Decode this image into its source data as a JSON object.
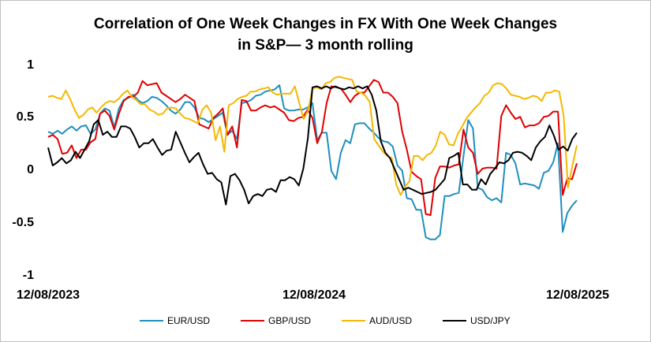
{
  "chart_data": {
    "type": "line",
    "title_lines": [
      "Correlation of One Week Changes in FX With One Week Changes",
      "in S&P— 3 month rolling"
    ],
    "xlabel": "",
    "ylabel": "",
    "ylim": [
      -1,
      1
    ],
    "y_ticks": [
      "1",
      "0.5",
      "0",
      "-0.5",
      "-1"
    ],
    "x_ticks": [
      "12/08/2023",
      "12/08/2024",
      "12/08/2025"
    ],
    "grid": false,
    "legend_position": "bottom",
    "series": [
      {
        "name": "EUR/USD",
        "color": "#1f8fbf",
        "values": [
          0.35,
          0.33,
          0.36,
          0.33,
          0.37,
          0.4,
          0.36,
          0.4,
          0.41,
          0.33,
          0.37,
          0.52,
          0.57,
          0.55,
          0.39,
          0.57,
          0.65,
          0.67,
          0.7,
          0.65,
          0.62,
          0.64,
          0.68,
          0.67,
          0.64,
          0.6,
          0.55,
          0.52,
          0.56,
          0.63,
          0.63,
          0.58,
          0.48,
          0.47,
          0.44,
          0.47,
          0.5,
          0.53,
          0.32,
          0.36,
          0.28,
          0.62,
          0.63,
          0.65,
          0.69,
          0.7,
          0.73,
          0.74,
          0.75,
          0.79,
          0.57,
          0.55,
          0.55,
          0.56,
          0.56,
          0.58,
          0.62,
          0.27,
          0.34,
          0.34,
          -0.02,
          -0.1,
          0.15,
          0.27,
          0.24,
          0.42,
          0.43,
          0.43,
          0.38,
          0.34,
          0.29,
          0.26,
          0.25,
          0.21,
          0.03,
          -0.02,
          -0.28,
          -0.29,
          -0.39,
          -0.39,
          -0.65,
          -0.67,
          -0.67,
          -0.63,
          -0.26,
          -0.26,
          -0.24,
          -0.23,
          0.12,
          0.46,
          0.38,
          -0.18,
          -0.2,
          -0.27,
          -0.3,
          -0.28,
          -0.32,
          0.15,
          0.13,
          0.05,
          -0.15,
          -0.14,
          -0.15,
          -0.16,
          -0.19,
          -0.04,
          -0.02,
          0.06,
          0.24,
          -0.6,
          -0.42,
          -0.35,
          -0.3
        ]
      },
      {
        "name": "GBP/USD",
        "color": "#e00000",
        "values": [
          0.3,
          0.32,
          0.28,
          0.14,
          0.15,
          0.22,
          0.1,
          0.18,
          0.18,
          0.25,
          0.28,
          0.52,
          0.55,
          0.5,
          0.37,
          0.52,
          0.64,
          0.68,
          0.68,
          0.72,
          0.83,
          0.79,
          0.8,
          0.81,
          0.72,
          0.69,
          0.66,
          0.63,
          0.66,
          0.7,
          0.67,
          0.64,
          0.42,
          0.4,
          0.38,
          0.48,
          0.52,
          0.57,
          0.32,
          0.4,
          0.2,
          0.65,
          0.64,
          0.55,
          0.55,
          0.58,
          0.6,
          0.58,
          0.59,
          0.56,
          0.53,
          0.46,
          0.45,
          0.48,
          0.49,
          0.56,
          0.48,
          0.24,
          0.35,
          0.62,
          0.78,
          0.77,
          0.76,
          0.7,
          0.63,
          0.69,
          0.72,
          0.72,
          0.78,
          0.84,
          0.82,
          0.72,
          0.72,
          0.68,
          0.62,
          0.35,
          0.18,
          -0.03,
          -0.07,
          -0.1,
          -0.43,
          -0.44,
          -0.09,
          0.02,
          0.02,
          0.01,
          0.03,
          0.04,
          0.37,
          0.2,
          0.15,
          -0.05,
          0.0,
          0.01,
          0.01,
          0.0,
          0.5,
          0.6,
          0.53,
          0.47,
          0.49,
          0.39,
          0.41,
          0.41,
          0.43,
          0.49,
          0.5,
          0.54,
          0.54,
          -0.25,
          -0.09,
          -0.1,
          0.05
        ]
      },
      {
        "name": "AUD/USD",
        "color": "#f5b800",
        "values": [
          0.68,
          0.69,
          0.67,
          0.66,
          0.74,
          0.66,
          0.56,
          0.48,
          0.51,
          0.56,
          0.58,
          0.53,
          0.58,
          0.62,
          0.64,
          0.63,
          0.66,
          0.71,
          0.74,
          0.68,
          0.65,
          0.61,
          0.61,
          0.56,
          0.54,
          0.51,
          0.52,
          0.57,
          0.58,
          0.57,
          0.52,
          0.48,
          0.47,
          0.45,
          0.43,
          0.56,
          0.6,
          0.53,
          0.27,
          0.4,
          0.16,
          0.6,
          0.62,
          0.66,
          0.68,
          0.69,
          0.73,
          0.73,
          0.75,
          0.76,
          0.77,
          0.72,
          0.7,
          0.71,
          0.71,
          0.71,
          0.78,
          0.62,
          0.47,
          0.55,
          0.76,
          0.77,
          0.75,
          0.81,
          0.82,
          0.86,
          0.87,
          0.86,
          0.85,
          0.84,
          0.73,
          0.72,
          0.69,
          0.63,
          0.28,
          0.22,
          0.16,
          0.12,
          0.1,
          -0.15,
          -0.25,
          -0.17,
          -0.12,
          0.12,
          0.12,
          0.08,
          0.13,
          0.15,
          0.22,
          0.35,
          0.32,
          0.23,
          0.22,
          0.33,
          0.4,
          0.48,
          0.53,
          0.58,
          0.62,
          0.69,
          0.72,
          0.79,
          0.81,
          0.8,
          0.76,
          0.7,
          0.69,
          0.68,
          0.66,
          0.67,
          0.69,
          0.68,
          0.64,
          0.72,
          0.72,
          0.74,
          0.73,
          0.5,
          -0.18,
          0.03,
          0.22
        ]
      },
      {
        "name": "USD/JPY",
        "color": "#000000",
        "values": [
          0.2,
          0.03,
          0.06,
          0.1,
          0.05,
          0.08,
          0.16,
          0.1,
          0.18,
          0.26,
          0.42,
          0.46,
          0.32,
          0.35,
          0.3,
          0.3,
          0.4,
          0.4,
          0.38,
          0.3,
          0.2,
          0.24,
          0.24,
          0.28,
          0.2,
          0.13,
          0.17,
          0.18,
          0.35,
          0.25,
          0.15,
          0.06,
          0.11,
          0.15,
          0.04,
          -0.05,
          -0.04,
          -0.1,
          -0.13,
          -0.34,
          -0.07,
          -0.05,
          -0.11,
          -0.2,
          -0.33,
          -0.26,
          -0.24,
          -0.26,
          -0.2,
          -0.19,
          -0.22,
          -0.11,
          -0.11,
          -0.08,
          -0.1,
          -0.16,
          0.0,
          0.29,
          0.77,
          0.78,
          0.76,
          0.78,
          0.76,
          0.78,
          0.76,
          0.75,
          0.77,
          0.76,
          0.78,
          0.76,
          0.78,
          0.7,
          0.55,
          0.26,
          0.15,
          0.1,
          0.0,
          -0.1,
          -0.2,
          -0.18,
          -0.2,
          -0.22,
          -0.24,
          -0.23,
          -0.22,
          -0.2,
          -0.15,
          -0.1,
          0.1,
          0.12,
          0.15,
          -0.15,
          -0.15,
          -0.2,
          -0.2,
          -0.1,
          -0.15,
          -0.05,
          0.0,
          0.06,
          0.05,
          0.08,
          0.15,
          0.16,
          0.15,
          0.12,
          0.08,
          0.2,
          0.26,
          0.3,
          0.41,
          0.31,
          0.18,
          0.21,
          0.17,
          0.28,
          0.34
        ]
      }
    ]
  }
}
